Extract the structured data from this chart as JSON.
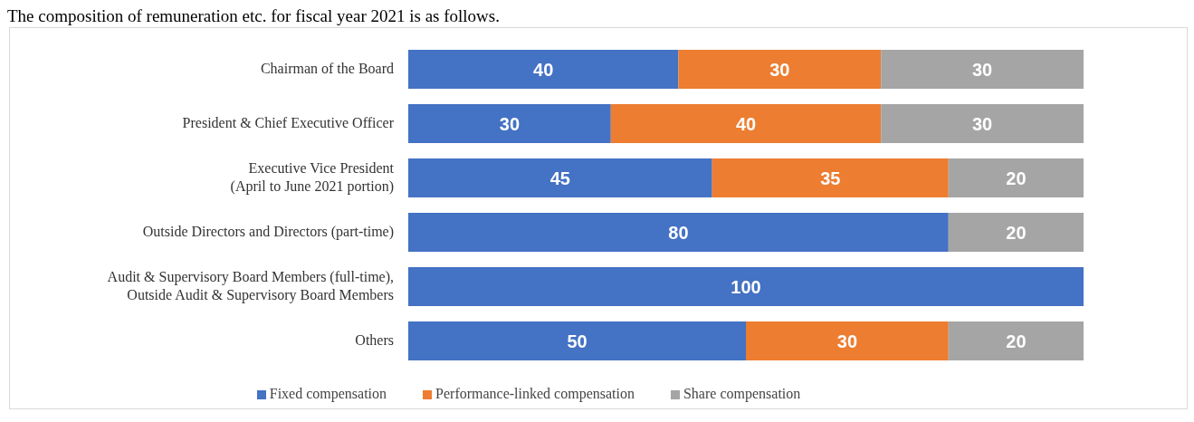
{
  "chart_data": {
    "type": "bar",
    "orientation": "horizontal",
    "stacked": true,
    "title": "The composition of remuneration etc. for fiscal year 2021 is as follows.",
    "categories": [
      "Chairman of the Board",
      "President & Chief Executive Officer",
      "Executive Vice President\n(April to June 2021 portion)",
      "Outside Directors and Directors (part-time)",
      "Audit & Supervisory Board Members (full-time),\nOutside Audit & Supervisory Board Members",
      "Others"
    ],
    "series": [
      {
        "name": "Fixed compensation",
        "color": "#4472c4",
        "values": [
          40,
          30,
          45,
          80,
          100,
          50
        ]
      },
      {
        "name": "Performance-linked compensation",
        "color": "#ed7d31",
        "values": [
          30,
          40,
          35,
          null,
          null,
          30
        ]
      },
      {
        "name": "Share compensation",
        "color": "#a5a5a5",
        "values": [
          30,
          30,
          20,
          20,
          null,
          20
        ]
      }
    ],
    "data_labels": true,
    "legend": "bottom"
  }
}
